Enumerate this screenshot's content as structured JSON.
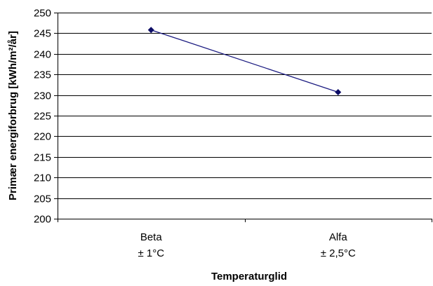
{
  "chart_data": {
    "type": "line",
    "xlabel": "Temperaturglid",
    "ylabel": "Primær energiforbrug [kWh/m²/år]",
    "categories": [
      {
        "name": "Beta",
        "sub": "± 1°C"
      },
      {
        "name": "Alfa",
        "sub": "± 2,5°C"
      }
    ],
    "series": [
      {
        "values": [
          245.8,
          230.7
        ]
      }
    ],
    "ylim": [
      200,
      250
    ],
    "yticks": [
      200,
      205,
      210,
      215,
      220,
      225,
      230,
      235,
      240,
      245,
      250
    ],
    "grid": true,
    "legend": "none",
    "colors": {
      "line": "#1a1a80",
      "marker": "#0d0d66",
      "grid": "#000000"
    }
  }
}
